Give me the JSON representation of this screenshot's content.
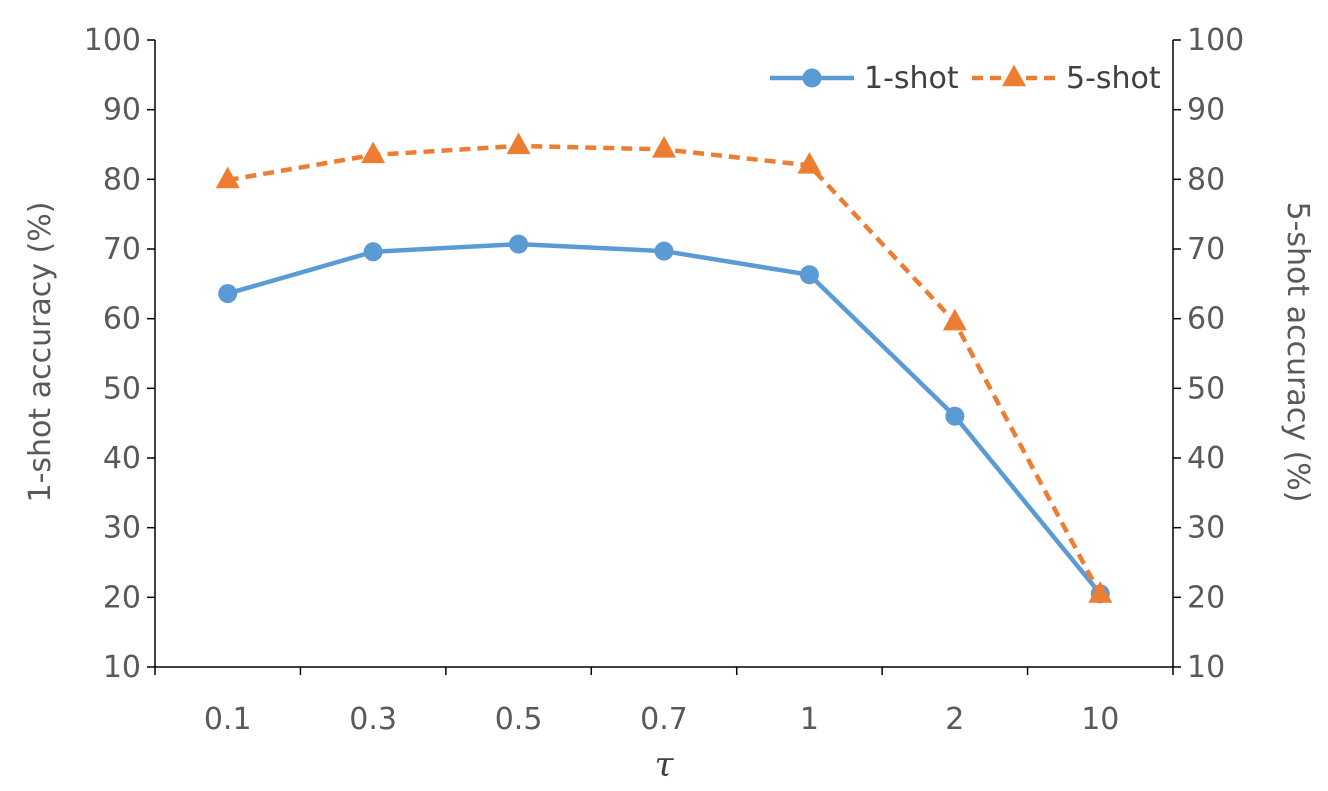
{
  "chart_data": {
    "type": "line",
    "categories": [
      "0.1",
      "0.3",
      "0.5",
      "0.7",
      "1",
      "2",
      "10"
    ],
    "xlabel": "τ",
    "ylabel_left": "1-shot accuracy (%)",
    "ylabel_right": "5-shot accuracy (%)",
    "ylim": [
      10,
      100
    ],
    "yticks": [
      10,
      20,
      30,
      40,
      50,
      60,
      70,
      80,
      90,
      100
    ],
    "grid": false,
    "legend_position": "top-right",
    "series": [
      {
        "name": "1-shot",
        "axis": "left",
        "color": "#5b9bd5",
        "marker": "circle",
        "line_style": "solid",
        "values": [
          63.6,
          69.6,
          70.7,
          69.7,
          66.3,
          46.0,
          20.5
        ]
      },
      {
        "name": "5-shot",
        "axis": "right",
        "color": "#ed7d31",
        "marker": "triangle",
        "line_style": "dashed",
        "values": [
          79.9,
          83.5,
          84.8,
          84.3,
          82.0,
          59.5,
          20.4
        ]
      }
    ]
  }
}
